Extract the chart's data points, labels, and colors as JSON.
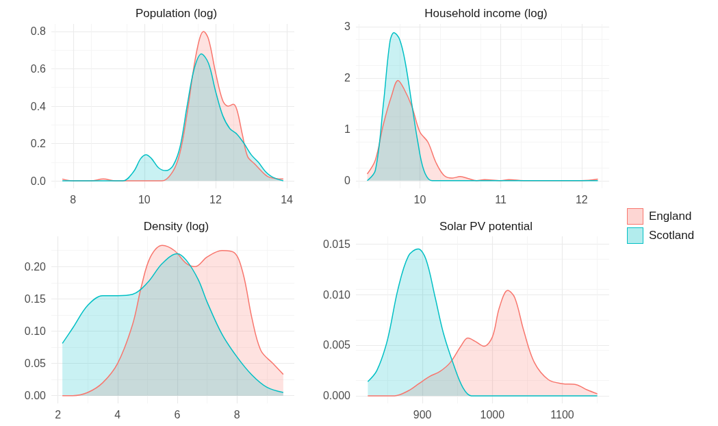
{
  "chart_data": [
    {
      "type": "area",
      "title": "Population (log)",
      "xlim": [
        7.39,
        14.21
      ],
      "xticks": [
        8,
        10,
        12,
        14
      ],
      "ylim": [
        -0.04,
        0.84
      ],
      "yticks": [
        {
          "value": 0,
          "label": "0.0"
        },
        0.2,
        0.4,
        0.6,
        0.8
      ],
      "grid": true,
      "legend": "right",
      "series": [
        {
          "name": "England",
          "color": "#f8766d",
          "x": [
            7.7,
            8.0,
            8.5,
            8.85,
            9.2,
            10.0,
            10.5,
            10.8,
            11.0,
            11.2,
            11.4,
            11.55,
            11.66,
            11.8,
            12.0,
            12.2,
            12.35,
            12.5,
            12.6,
            12.75,
            12.9,
            13.1,
            13.3,
            13.5,
            13.9
          ],
          "values": [
            0.01,
            0.0,
            0.0,
            0.01,
            0.0,
            0.0,
            0.0,
            0.05,
            0.15,
            0.36,
            0.62,
            0.76,
            0.8,
            0.76,
            0.58,
            0.43,
            0.4,
            0.41,
            0.38,
            0.25,
            0.13,
            0.09,
            0.05,
            0.02,
            0.01
          ]
        },
        {
          "name": "Scotland",
          "color": "#00bfc4",
          "x": [
            7.7,
            9.0,
            9.4,
            9.7,
            9.9,
            10.05,
            10.2,
            10.4,
            10.6,
            10.8,
            11.0,
            11.2,
            11.4,
            11.6,
            11.8,
            12.0,
            12.2,
            12.4,
            12.6,
            12.8,
            13.0,
            13.2,
            13.4,
            13.6,
            13.9
          ],
          "values": [
            0.0,
            0.0,
            0.0,
            0.05,
            0.12,
            0.14,
            0.12,
            0.07,
            0.055,
            0.08,
            0.18,
            0.4,
            0.6,
            0.68,
            0.63,
            0.48,
            0.35,
            0.28,
            0.25,
            0.2,
            0.14,
            0.1,
            0.05,
            0.02,
            0.0
          ]
        }
      ]
    },
    {
      "type": "area",
      "title": "Household income (log)",
      "xlim": [
        9.21,
        12.34
      ],
      "xticks": [
        10,
        11,
        12
      ],
      "ylim": [
        -0.15,
        3.05
      ],
      "yticks": [
        0,
        1,
        2,
        3
      ],
      "grid": true,
      "series": [
        {
          "name": "England",
          "color": "#f8766d",
          "x": [
            9.35,
            9.45,
            9.55,
            9.65,
            9.73,
            9.8,
            9.9,
            10.0,
            10.1,
            10.2,
            10.3,
            10.4,
            10.5,
            10.6,
            10.7,
            10.8,
            11.0,
            11.1,
            11.3,
            12.0,
            12.2
          ],
          "values": [
            0.13,
            0.4,
            1.1,
            1.65,
            1.95,
            1.8,
            1.45,
            0.95,
            0.75,
            0.35,
            0.1,
            0.05,
            0.08,
            0.04,
            0.0,
            0.02,
            0.0,
            0.02,
            0.0,
            0.0,
            0.03
          ]
        },
        {
          "name": "Scotland",
          "color": "#00bfc4",
          "x": [
            9.35,
            9.45,
            9.55,
            9.63,
            9.68,
            9.75,
            9.82,
            9.9,
            9.97,
            10.05,
            10.15,
            10.3,
            12.2
          ],
          "values": [
            0.0,
            0.2,
            1.5,
            2.7,
            2.88,
            2.75,
            2.3,
            1.5,
            0.8,
            0.2,
            0.0,
            0.0,
            0.0
          ]
        }
      ]
    },
    {
      "type": "area",
      "title": "Density (log)",
      "xlim": [
        1.78,
        9.92
      ],
      "xticks": [
        2,
        4,
        6,
        8
      ],
      "ylim": [
        -0.012,
        0.247
      ],
      "yticks": [
        {
          "value": 0,
          "label": "0.00"
        },
        {
          "value": 0.05,
          "label": "0.05"
        },
        {
          "value": 0.1,
          "label": "0.10"
        },
        {
          "value": 0.15,
          "label": "0.15"
        },
        {
          "value": 0.2,
          "label": "0.20"
        }
      ],
      "grid": true,
      "series": [
        {
          "name": "England",
          "color": "#f8766d",
          "x": [
            2.15,
            2.5,
            3.0,
            3.5,
            4.0,
            4.5,
            4.8,
            5.1,
            5.5,
            5.9,
            6.3,
            6.6,
            7.0,
            7.5,
            7.9,
            8.2,
            8.5,
            8.8,
            9.2,
            9.55
          ],
          "values": [
            0.0,
            0.0,
            0.005,
            0.02,
            0.05,
            0.11,
            0.17,
            0.215,
            0.233,
            0.225,
            0.205,
            0.2,
            0.215,
            0.225,
            0.222,
            0.19,
            0.12,
            0.07,
            0.05,
            0.033
          ]
        },
        {
          "name": "Scotland",
          "color": "#00bfc4",
          "x": [
            2.15,
            2.5,
            3.0,
            3.5,
            4.0,
            4.5,
            5.0,
            5.5,
            6.0,
            6.3,
            6.7,
            7.0,
            7.5,
            8.0,
            8.5,
            9.0,
            9.55
          ],
          "values": [
            0.081,
            0.105,
            0.14,
            0.155,
            0.155,
            0.157,
            0.175,
            0.205,
            0.22,
            0.21,
            0.18,
            0.145,
            0.095,
            0.06,
            0.032,
            0.013,
            0.005
          ]
        }
      ]
    },
    {
      "type": "area",
      "title": "Solar PV potential",
      "xlim": [
        805,
        1167
      ],
      "xticks": [
        900,
        1000,
        1100
      ],
      "ylim": [
        -0.00075,
        0.01575
      ],
      "yticks": [
        {
          "value": 0,
          "label": "0.000"
        },
        {
          "value": 0.005,
          "label": "0.005"
        },
        {
          "value": 0.01,
          "label": "0.010"
        },
        {
          "value": 0.015,
          "label": "0.015"
        }
      ],
      "grid": true,
      "series": [
        {
          "name": "England",
          "color": "#f8766d",
          "x": [
            822,
            860,
            880,
            895,
            910,
            925,
            940,
            955,
            965,
            975,
            988,
            1000,
            1010,
            1022,
            1032,
            1045,
            1060,
            1080,
            1100,
            1120,
            1135,
            1150
          ],
          "values": [
            0.0,
            0.0,
            0.0005,
            0.0012,
            0.0019,
            0.0024,
            0.0033,
            0.0049,
            0.0057,
            0.0054,
            0.0049,
            0.0058,
            0.0087,
            0.0104,
            0.0097,
            0.0064,
            0.0033,
            0.0016,
            0.0012,
            0.0011,
            0.0006,
            0.0002
          ]
        },
        {
          "name": "Scotland",
          "color": "#00bfc4",
          "x": [
            822,
            835,
            850,
            865,
            880,
            894,
            905,
            918,
            930,
            945,
            958,
            970,
            980,
            1150
          ],
          "values": [
            0.0014,
            0.0025,
            0.0055,
            0.0105,
            0.0138,
            0.0145,
            0.0135,
            0.0098,
            0.0062,
            0.003,
            0.0008,
            0.0,
            0.0,
            0.0
          ]
        }
      ]
    }
  ]
}
